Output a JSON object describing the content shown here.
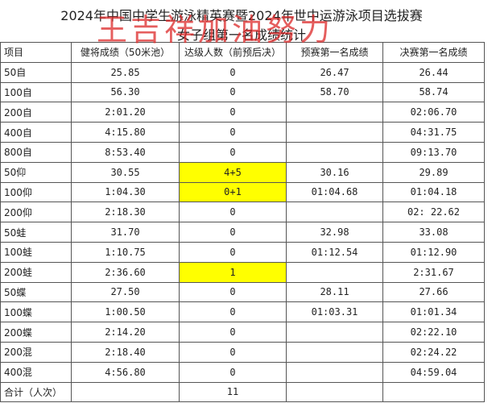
{
  "header": {
    "title": "2024年中国中学生游泳精英赛暨2024年世中运游泳项目选拔赛",
    "subtitle": "女子组第一名成绩统计"
  },
  "watermark": "王吉祥加油努力",
  "table": {
    "columns": [
      "项目",
      "健将成绩（50米池）",
      "达级人数（前预后决）",
      "预赛第一名成绩",
      "决赛第一名成绩"
    ],
    "rows": [
      [
        "50自",
        "25.85",
        "0",
        "26.47",
        "26.44"
      ],
      [
        "100自",
        "56.30",
        "0",
        "58.70",
        "58.74"
      ],
      [
        "200自",
        "2:01.20",
        "0",
        null,
        "02:06.70"
      ],
      [
        "400自",
        "4:15.80",
        "0",
        null,
        "04:31.75"
      ],
      [
        "800自",
        "8:53.40",
        "0",
        null,
        "09:13.70"
      ],
      [
        "50仰",
        "30.55",
        "4+5",
        "30.16",
        "29.89"
      ],
      [
        "100仰",
        "1:04.30",
        "0+1",
        "01:04.68",
        "01:04.18"
      ],
      [
        "200仰",
        "2:18.30",
        "0",
        null,
        "02: 22.62"
      ],
      [
        "50蛙",
        "31.70",
        "0",
        "32.98",
        "33.08"
      ],
      [
        "100蛙",
        "1:10.75",
        "0",
        "01:12.54",
        "01:12.90"
      ],
      [
        "200蛙",
        "2:36.60",
        "1",
        null,
        "2:31.67"
      ],
      [
        "50蝶",
        "27.50",
        "0",
        "28.11",
        "27.66"
      ],
      [
        "100蝶",
        "1:00.50",
        "0",
        "01:03.31",
        "01:01.34"
      ],
      [
        "200蝶",
        "2:14.20",
        "0",
        null,
        "02:22.10"
      ],
      [
        "200混",
        "2:18.40",
        "0",
        null,
        "02:24.22"
      ],
      [
        "400混",
        "4:56.80",
        "0",
        null,
        "04:59.04"
      ],
      [
        "合计（人次）",
        null,
        "11",
        null,
        null
      ]
    ],
    "highlighted_cells": [
      [
        5,
        2
      ],
      [
        6,
        2
      ],
      [
        10,
        2
      ]
    ]
  }
}
